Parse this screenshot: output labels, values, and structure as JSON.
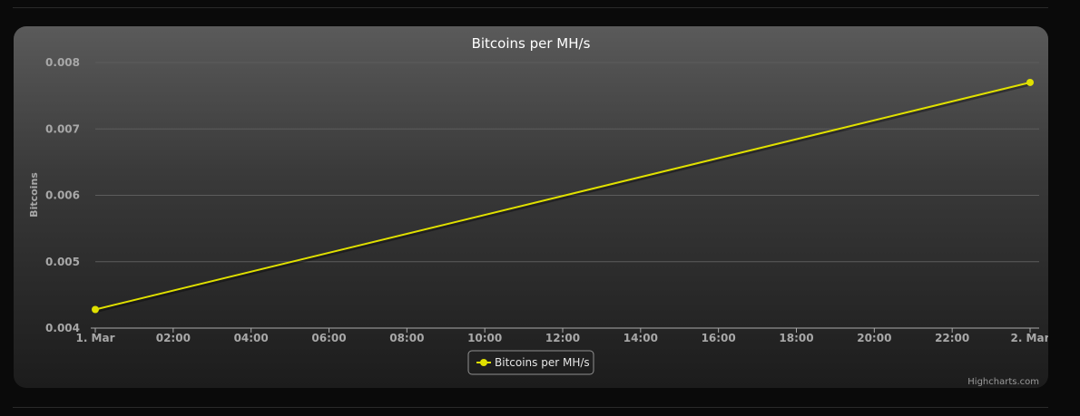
{
  "chart_data": {
    "type": "line",
    "title": "Bitcoins per MH/s",
    "ylabel": "Bitcoins",
    "xlabel": "",
    "ylim": [
      0.004,
      0.008
    ],
    "y_ticks": [
      "0.004",
      "0.005",
      "0.006",
      "0.007",
      "0.008"
    ],
    "x_ticks": [
      "1. Mar",
      "02:00",
      "04:00",
      "06:00",
      "08:00",
      "10:00",
      "12:00",
      "14:00",
      "16:00",
      "18:00",
      "20:00",
      "22:00",
      "2. Mar"
    ],
    "x_range_hours": [
      0,
      24
    ],
    "series": [
      {
        "name": "Bitcoins per MH/s",
        "color": "#e0e000",
        "points": [
          {
            "x_hours": 0,
            "y": 0.00428
          },
          {
            "x_hours": 24,
            "y": 0.0077
          }
        ]
      }
    ],
    "legend": "bottom-center",
    "credits": "Highcharts.com"
  }
}
